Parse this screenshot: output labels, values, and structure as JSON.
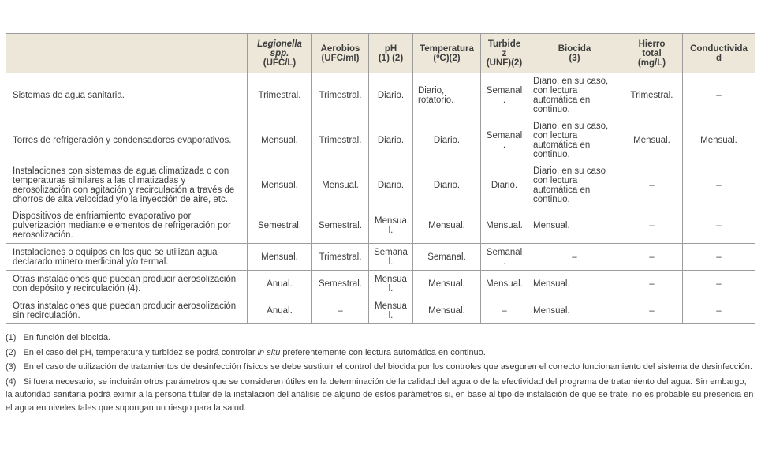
{
  "table": {
    "header_bg": "#ece7d8",
    "border_color": "#9c9c9c",
    "columns": [
      {
        "italic": "",
        "rest": ""
      },
      {
        "italic": "Legionella spp.",
        "rest": "(UFC/L)"
      },
      {
        "italic": "",
        "rest": "Aerobios\n(UFC/ml)"
      },
      {
        "italic": "",
        "rest": "pH\n(1) (2)"
      },
      {
        "italic": "",
        "rest": "Temperatura\n(ºC)(2)"
      },
      {
        "italic": "",
        "rest": "Turbidez\n(UNF)(2)"
      },
      {
        "italic": "",
        "rest": "Biocida\n(3)"
      },
      {
        "italic": "",
        "rest": "Hierro\ntotal\n(mg/L)"
      },
      {
        "italic": "",
        "rest": "Conductividad"
      }
    ],
    "rows": [
      {
        "label": "Sistemas de agua sanitaria.",
        "cells": [
          "Trimestral.",
          "Trimestral.",
          "Diario.",
          "Diario, rotatorio.",
          "Semanal.",
          "Diario, en su caso, con lectura automática en continuo.",
          "Trimestral.",
          "–"
        ]
      },
      {
        "label": "Torres de refrigeración y condensadores evaporativos.",
        "cells": [
          "Mensual.",
          "Trimestral.",
          "Diario.",
          "Diario.",
          "Semanal.",
          "Diario. en su caso, con lectura automática en continuo.",
          "Mensual.",
          "Mensual."
        ]
      },
      {
        "label": "Instalaciones con sistemas de agua climatizada o con temperaturas similares a las climatizadas y aerosolización con agitación y recirculación a través de chorros de alta velocidad y/o la inyección de aire, etc.",
        "cells": [
          "Mensual.",
          "Mensual.",
          "Diario.",
          "Diario.",
          "Diario.",
          "Diario, en su caso con lectura automática en continuo.",
          "–",
          "–"
        ]
      },
      {
        "label": "Dispositivos de enfriamiento evaporativo por pulverización mediante elementos de refrigeración por aerosolización.",
        "cells": [
          "Semestral.",
          "Semestral.",
          "Mensual.",
          "Mensual.",
          "Mensual.",
          "Mensual.",
          "–",
          "–"
        ]
      },
      {
        "label": "Instalaciones o equipos en los que se utilizan agua declarado minero medicinal y/o termal.",
        "cells": [
          "Mensual.",
          "Trimestral.",
          "Semanal.",
          "Semanal.",
          "Semanal.",
          "–",
          "–",
          "–"
        ]
      },
      {
        "label": "Otras instalaciones que puedan producir aerosolización con depósito y recirculación (4).",
        "cells": [
          "Anual.",
          "Semestral.",
          "Mensual.",
          "Mensual.",
          "Mensual.",
          "Mensual.",
          "–",
          "–"
        ]
      },
      {
        "label": "Otras instalaciones que puedan producir aerosolización sin recirculación.",
        "cells": [
          "Anual.",
          "–",
          "Mensual.",
          "Mensual.",
          "–",
          "Mensual.",
          "–",
          "–"
        ]
      }
    ]
  },
  "footnotes": [
    {
      "num": "(1)",
      "segments": [
        {
          "text": "En función del biocida."
        }
      ]
    },
    {
      "num": "(2)",
      "segments": [
        {
          "text": "En el caso del pH, temperatura y turbidez se podrá controlar "
        },
        {
          "text": "in situ",
          "italic": true
        },
        {
          "text": " preferentemente con lectura automática en continuo."
        }
      ]
    },
    {
      "num": "(3)",
      "segments": [
        {
          "text": "En el caso de utilización de tratamientos de desinfección físicos se debe sustituir el control del biocida por los controles que aseguren el correcto funcionamiento del sistema de desinfección."
        }
      ]
    },
    {
      "num": "(4)",
      "segments": [
        {
          "text": "Si fuera necesario, se incluirán otros parámetros que se consideren útiles en la determinación de la calidad del agua o de la efectividad del programa de tratamiento del agua. Sin embargo, la autoridad sanitaria podrá eximir a la persona titular de la instalación del análisis de alguno de estos parámetros si, en base al tipo de instalación de que se trate, no es probable su presencia en el agua en niveles tales que supongan un riesgo para la salud."
        }
      ]
    }
  ]
}
